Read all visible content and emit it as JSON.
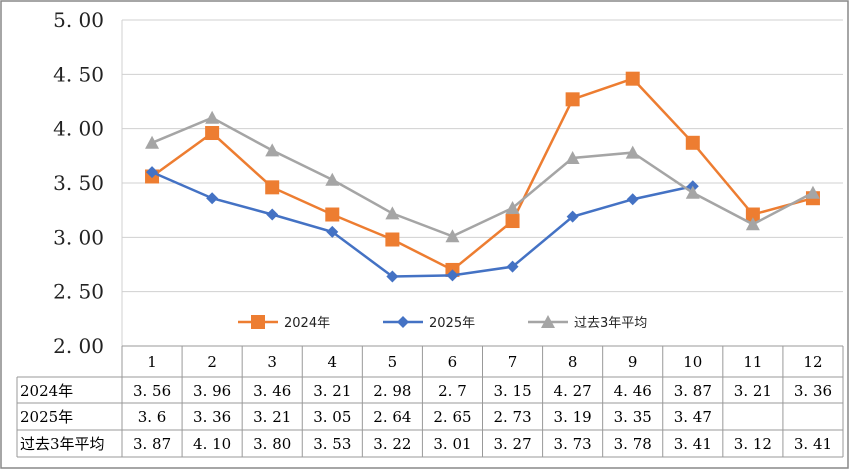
{
  "chart_data": {
    "type": "line",
    "categories": [
      "1",
      "2",
      "3",
      "4",
      "5",
      "6",
      "7",
      "8",
      "9",
      "10",
      "11",
      "12"
    ],
    "series": [
      {
        "name": "2024年",
        "color": "#ED7D31",
        "marker": "square",
        "values": [
          3.56,
          3.96,
          3.46,
          3.21,
          2.98,
          2.7,
          3.15,
          4.27,
          4.46,
          3.87,
          3.21,
          3.36
        ],
        "labels": [
          "3.56",
          "3.96",
          "3.46",
          "3.21",
          "2.98",
          "2.7",
          "3.15",
          "4.27",
          "4.46",
          "3.87",
          "3.21",
          "3.36"
        ]
      },
      {
        "name": "2025年",
        "color": "#4472C4",
        "marker": "diamond",
        "values": [
          3.6,
          3.36,
          3.21,
          3.05,
          2.64,
          2.65,
          2.73,
          3.19,
          3.35,
          3.47,
          null,
          null
        ],
        "labels": [
          "3.6",
          "3.36",
          "3.21",
          "3.05",
          "2.64",
          "2.65",
          "2.73",
          "3.19",
          "3.35",
          "3.47",
          "",
          ""
        ]
      },
      {
        "name": "过去3年平均",
        "color": "#A5A5A5",
        "marker": "triangle",
        "values": [
          3.87,
          4.1,
          3.8,
          3.53,
          3.22,
          3.01,
          3.27,
          3.73,
          3.78,
          3.41,
          3.12,
          3.41
        ],
        "labels": [
          "3.87",
          "4.10",
          "3.80",
          "3.53",
          "3.22",
          "3.01",
          "3.27",
          "3.73",
          "3.78",
          "3.41",
          "3.12",
          "3.41"
        ]
      }
    ],
    "yticks": [
      "2.00",
      "2.50",
      "3.00",
      "3.50",
      "4.00",
      "4.50",
      "5.00"
    ],
    "ylim": [
      2.0,
      5.0
    ],
    "grid": true,
    "legend": "bottom-inside",
    "data_table": true
  }
}
